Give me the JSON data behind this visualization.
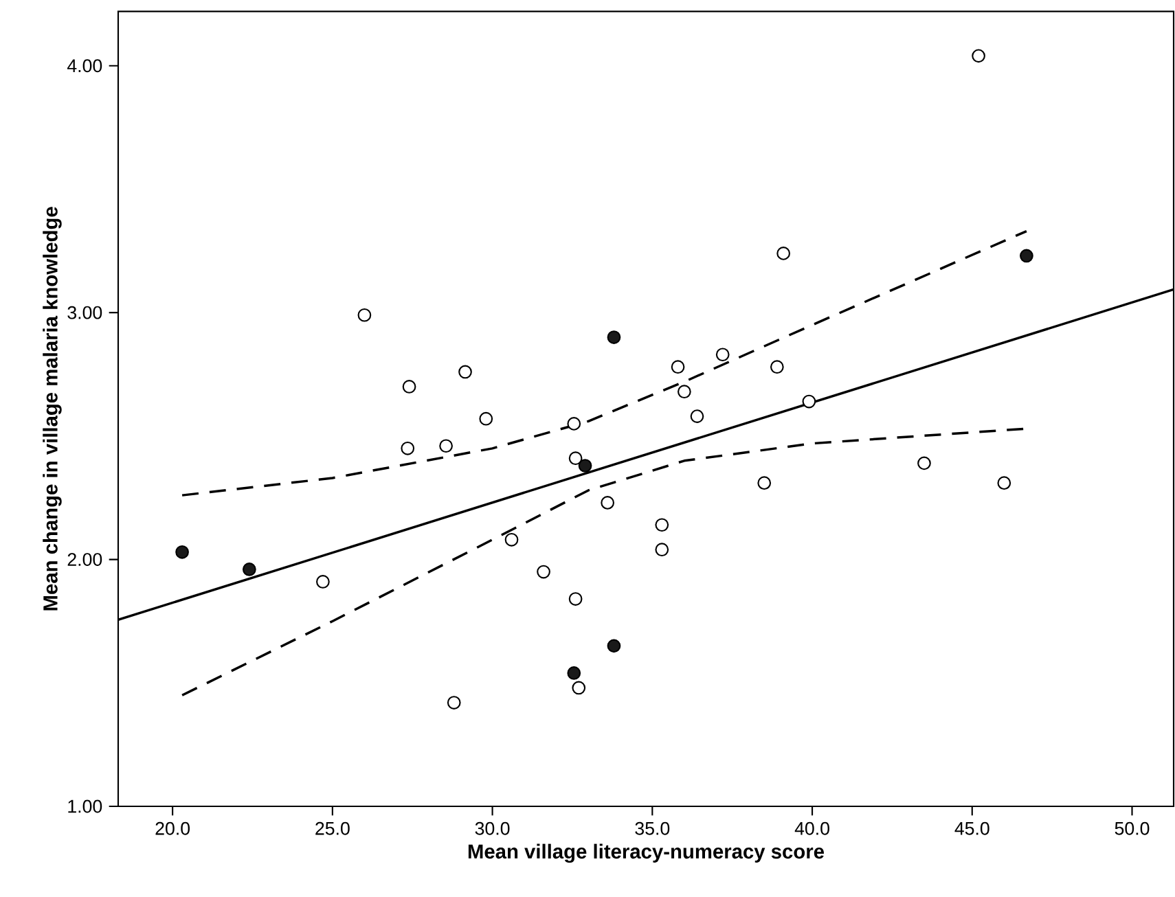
{
  "chart_data": {
    "type": "scatter",
    "xlabel": "Mean village literacy-numeracy score",
    "ylabel": "Mean change in village malaria knowledge",
    "xlim": [
      18.3,
      51.3
    ],
    "ylim": [
      1.0,
      4.22
    ],
    "xticks": [
      {
        "value": 20,
        "label": "20.0"
      },
      {
        "value": 25,
        "label": "25.0"
      },
      {
        "value": 30,
        "label": "30.0"
      },
      {
        "value": 35,
        "label": "35.0"
      },
      {
        "value": 40,
        "label": "40.0"
      },
      {
        "value": 45,
        "label": "45.0"
      },
      {
        "value": 50,
        "label": "50.0"
      }
    ],
    "yticks": [
      {
        "value": 1,
        "label": "1.00"
      },
      {
        "value": 2,
        "label": "2.00"
      },
      {
        "value": 3,
        "label": "3.00"
      },
      {
        "value": 4,
        "label": "4.00"
      }
    ],
    "grid": false,
    "series": [
      {
        "marker": "circle",
        "color": "#ffffff",
        "x": [
          26.0,
          27.4,
          29.15,
          27.35,
          28.55,
          29.8,
          32.6,
          32.55,
          33.6,
          30.6,
          31.6,
          32.6,
          24.7,
          28.8,
          32.7,
          35.3,
          35.3,
          35.8,
          36.0,
          36.4,
          37.2,
          38.9,
          39.1,
          39.9,
          38.5,
          45.2,
          43.5,
          46.0
        ],
        "values": [
          2.99,
          2.7,
          2.76,
          2.45,
          2.46,
          2.57,
          2.41,
          2.55,
          2.23,
          2.08,
          1.95,
          1.84,
          1.91,
          1.42,
          1.48,
          2.14,
          2.04,
          2.78,
          2.68,
          2.58,
          2.83,
          2.78,
          3.24,
          2.64,
          2.31,
          4.04,
          2.39,
          2.31
        ]
      },
      {
        "marker": "circle",
        "color": "#1a1a1a",
        "x": [
          20.3,
          22.4,
          33.8,
          32.9,
          32.55,
          33.8,
          46.7
        ],
        "values": [
          2.03,
          1.96,
          2.9,
          2.38,
          1.54,
          1.65,
          3.23
        ]
      },
      {
        "type": "line",
        "marker": "none",
        "line_style": "solid",
        "color": "#000000",
        "x": [
          18.3,
          51.3
        ],
        "values": [
          1.756,
          3.094
        ]
      },
      {
        "type": "line",
        "marker": "none",
        "line_style": "dashed",
        "color": "#000000",
        "x": [
          20.3,
          25,
          30,
          33,
          36,
          40,
          46.7
        ],
        "values": [
          2.26,
          2.33,
          2.45,
          2.56,
          2.72,
          2.95,
          3.33
        ]
      },
      {
        "type": "line",
        "marker": "none",
        "line_style": "dashed",
        "color": "#000000",
        "x": [
          20.3,
          25,
          30,
          33,
          36,
          40,
          46.7
        ],
        "values": [
          1.45,
          1.75,
          2.08,
          2.28,
          2.4,
          2.47,
          2.53
        ]
      }
    ]
  }
}
